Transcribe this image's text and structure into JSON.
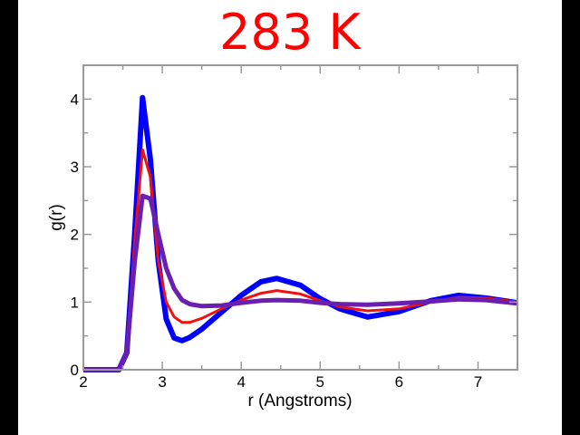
{
  "chart_data": {
    "type": "line",
    "title": "283 K",
    "xlabel": "r (Angstroms)",
    "ylabel": "g(r)",
    "xlim": [
      2,
      7.5
    ],
    "ylim": [
      0,
      4.5
    ],
    "xticks": [
      2,
      3,
      4,
      5,
      6,
      7
    ],
    "yticks": [
      0,
      1,
      2,
      3,
      4
    ],
    "xtick_labels": [
      "2",
      "3",
      "4",
      "5",
      "6",
      "7"
    ],
    "ytick_labels": [
      "0",
      "1",
      "2",
      "3",
      "4"
    ],
    "grid": false,
    "x": [
      2.0,
      2.45,
      2.55,
      2.65,
      2.75,
      2.85,
      2.95,
      3.05,
      3.15,
      3.25,
      3.35,
      3.5,
      3.75,
      4.0,
      4.25,
      4.45,
      4.75,
      5.0,
      5.25,
      5.6,
      6.0,
      6.4,
      6.75,
      7.1,
      7.5
    ],
    "series": [
      {
        "name": "blue",
        "color": "#0000ff",
        "width": 6,
        "values": [
          0,
          0,
          0.25,
          2.0,
          4.02,
          3.1,
          1.6,
          0.75,
          0.47,
          0.43,
          0.48,
          0.6,
          0.85,
          1.1,
          1.3,
          1.35,
          1.25,
          1.05,
          0.9,
          0.78,
          0.86,
          1.02,
          1.1,
          1.06,
          0.99
        ]
      },
      {
        "name": "red",
        "color": "#ee1111",
        "width": 3,
        "values": [
          0,
          0,
          0.25,
          1.9,
          3.25,
          2.85,
          1.6,
          1.0,
          0.78,
          0.7,
          0.7,
          0.76,
          0.9,
          1.03,
          1.13,
          1.17,
          1.12,
          1.02,
          0.93,
          0.87,
          0.9,
          1.0,
          1.07,
          1.06,
          1.0
        ]
      },
      {
        "name": "purple",
        "color": "#6a1fb0",
        "width": 5,
        "values": [
          0,
          0,
          0.25,
          1.6,
          2.57,
          2.53,
          2.0,
          1.5,
          1.2,
          1.03,
          0.97,
          0.94,
          0.95,
          0.99,
          1.02,
          1.03,
          1.02,
          0.99,
          0.97,
          0.96,
          0.98,
          1.01,
          1.04,
          1.03,
          0.98
        ]
      }
    ],
    "title_color": "#ff0000"
  }
}
